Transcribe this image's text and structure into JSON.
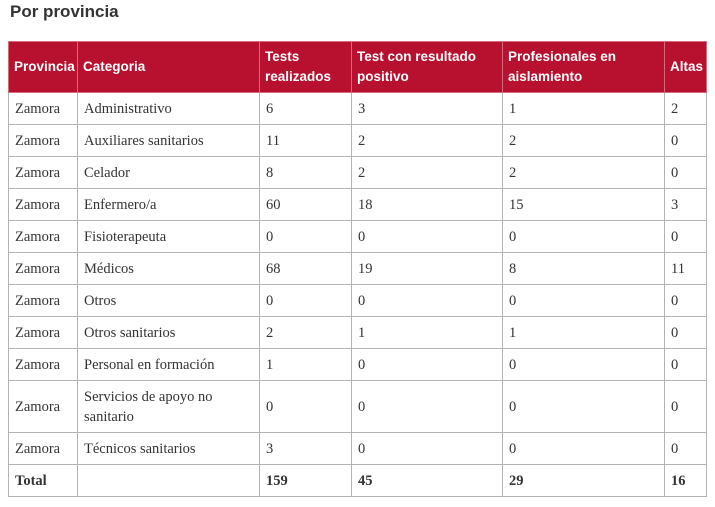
{
  "heading": "Por provincia",
  "table": {
    "headers": [
      "Provincia",
      "Categoria",
      "Tests realizados",
      "Test con resultado positivo",
      "Profesionales en aislamiento",
      "Altas"
    ],
    "rows": [
      [
        "Zamora",
        "Administrativo",
        "6",
        "3",
        "1",
        "2"
      ],
      [
        "Zamora",
        "Auxiliares sanitarios",
        "11",
        "2",
        "2",
        "0"
      ],
      [
        "Zamora",
        "Celador",
        "8",
        "2",
        "2",
        "0"
      ],
      [
        "Zamora",
        "Enfermero/a",
        "60",
        "18",
        "15",
        "3"
      ],
      [
        "Zamora",
        "Fisioterapeuta",
        "0",
        "0",
        "0",
        "0"
      ],
      [
        "Zamora",
        "Médicos",
        "68",
        "19",
        "8",
        "11"
      ],
      [
        "Zamora",
        "Otros",
        "0",
        "0",
        "0",
        "0"
      ],
      [
        "Zamora",
        "Otros sanitarios",
        "2",
        "1",
        "1",
        "0"
      ],
      [
        "Zamora",
        "Personal en formación",
        "1",
        "0",
        "0",
        "0"
      ],
      [
        "Zamora",
        "Servicios de apoyo no sanitario",
        "0",
        "0",
        "0",
        "0"
      ],
      [
        "Zamora",
        "Técnicos sanitarios",
        "3",
        "0",
        "0",
        "0"
      ]
    ],
    "total": [
      "Total",
      "",
      "159",
      "45",
      "29",
      "16"
    ]
  },
  "colors": {
    "header_bg": "#b8102f",
    "header_text": "#ffffff",
    "border": "#b3b3b3",
    "text": "#333333"
  }
}
